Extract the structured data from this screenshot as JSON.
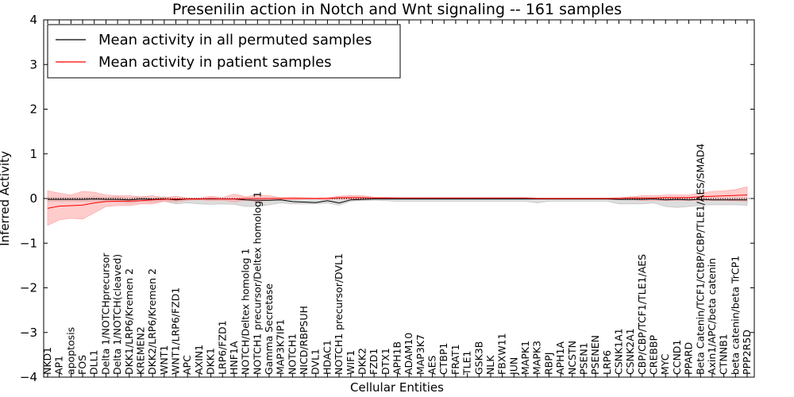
{
  "chart_data": {
    "type": "line",
    "title": "Presenilin action in Notch and Wnt signaling -- 161 samples",
    "xlabel": "Cellular Entities",
    "ylabel": "Inferred Activity",
    "ylim": [
      -4,
      4
    ],
    "yticks": [
      -4,
      -3,
      -2,
      -1,
      0,
      1,
      2,
      3,
      4
    ],
    "ytick_labels": [
      "−4",
      "−3",
      "−2",
      "−1",
      "0",
      "1",
      "2",
      "3",
      "4"
    ],
    "grid": false,
    "legend_position": "top-left",
    "categories": [
      "NKD1",
      "AP1",
      "apoptosis",
      "FOS",
      "DLL1",
      "Delta 1/NOTCHprecursor",
      "Delta 1/NOTCH(cleaved)",
      "DKK1/LRP6/Kremen 2",
      "KREMEN2",
      "DKK2/LRP6/Kremen 2",
      "WNT1",
      "WNT1/LRP6/FZD1",
      "APC",
      "AXIN1",
      "DKK1",
      "LRP6/FZD1",
      "HNF1A",
      "NOTCH/Deltex homolog 1",
      "NOTCH1 precursor/Deltex homolog 1",
      "Gamma Secretase",
      "MAP3K7IP1",
      "NOTCH1",
      "NICD/RBPSUH",
      "DVL1",
      "HDAC1",
      "NOTCH1 precursor/DVL1",
      "WIF1",
      "DKK2",
      "FZD1",
      "DTX1",
      "APH1B",
      "ADAM10",
      "MAP3K7",
      "AES",
      "CTBP1",
      "FRAT1",
      "TLE1",
      "GSK3B",
      "NLK",
      "FBXW11",
      "JUN",
      "MAPK1",
      "MAPK3",
      "RBPJ",
      "APH1A",
      "NCSTN",
      "PSEN1",
      "PSENEN",
      "LRP6",
      "CSNK1A1",
      "CSNK2A1",
      "CBP/CBP/TCF1/TLE1/AES",
      "CREBBP",
      "MYC",
      "CCND1",
      "PPARD",
      "Beta Catenin/TCF1/CtBP/CBP/TLE1/AES/SMAD4",
      "Axin1/APC/beta catenin",
      "CTNNB1",
      "beta catenin/beta TrCP1",
      "PPP2R5D"
    ],
    "series": [
      {
        "name": "Mean activity in all permuted samples",
        "color": "#000000",
        "values": [
          -0.02,
          -0.02,
          -0.02,
          -0.02,
          -0.01,
          -0.02,
          -0.02,
          -0.03,
          -0.01,
          -0.02,
          -0.01,
          -0.03,
          -0.01,
          -0.01,
          -0.01,
          -0.01,
          -0.01,
          -0.03,
          -0.04,
          -0.04,
          -0.03,
          -0.07,
          -0.08,
          -0.09,
          -0.05,
          -0.1,
          -0.03,
          -0.02,
          -0.01,
          -0.01,
          -0.01,
          -0.01,
          -0.01,
          -0.01,
          -0.01,
          -0.01,
          -0.01,
          -0.01,
          -0.01,
          -0.01,
          -0.01,
          -0.01,
          -0.01,
          -0.01,
          -0.01,
          -0.01,
          -0.01,
          -0.01,
          -0.01,
          -0.02,
          -0.02,
          -0.02,
          -0.01,
          -0.03,
          -0.02,
          -0.03,
          -0.02,
          -0.03,
          -0.03,
          -0.03,
          -0.03
        ],
        "band": {
          "color": "#bbbbbb",
          "upper": [
            0.02,
            0.02,
            0.02,
            0.02,
            0.04,
            0.02,
            0.04,
            0.0,
            0.04,
            0.0,
            0.04,
            -0.01,
            0.0,
            0.0,
            0.0,
            0.0,
            0.0,
            0.0,
            0.0,
            0.0,
            0.0,
            0.0,
            0.0,
            0.0,
            0.0,
            0.0,
            0.0,
            0.0,
            0.0,
            0.0,
            0.0,
            0.0,
            0.0,
            0.0,
            0.0,
            0.0,
            0.0,
            0.0,
            0.0,
            0.0,
            0.0,
            0.0,
            0.0,
            0.0,
            0.0,
            0.0,
            0.0,
            0.0,
            0.0,
            0.0,
            0.0,
            0.0,
            0.0,
            0.0,
            0.0,
            0.0,
            0.0,
            0.0,
            0.0,
            0.0,
            0.0
          ],
          "lower": [
            -0.06,
            -0.06,
            -0.06,
            -0.06,
            -0.06,
            -0.06,
            -0.08,
            -0.1,
            -0.06,
            -0.08,
            -0.06,
            -0.12,
            -0.1,
            -0.12,
            -0.13,
            -0.12,
            -0.13,
            -0.18,
            -0.18,
            -0.14,
            -0.1,
            -0.12,
            -0.12,
            -0.12,
            -0.1,
            -0.15,
            -0.06,
            -0.04,
            -0.04,
            -0.05,
            -0.06,
            -0.06,
            -0.06,
            -0.06,
            -0.06,
            -0.06,
            -0.06,
            -0.06,
            -0.06,
            -0.06,
            -0.06,
            -0.06,
            -0.1,
            -0.06,
            -0.06,
            -0.06,
            -0.06,
            -0.06,
            -0.06,
            -0.12,
            -0.12,
            -0.12,
            -0.1,
            -0.18,
            -0.2,
            -0.18,
            -0.15,
            -0.14,
            -0.14,
            -0.14,
            -0.15
          ]
        }
      },
      {
        "name": "Mean activity in patient samples",
        "color": "#ff0000",
        "values": [
          -0.22,
          -0.17,
          -0.16,
          -0.15,
          -0.1,
          -0.07,
          -0.06,
          -0.06,
          -0.05,
          -0.03,
          -0.02,
          -0.01,
          -0.01,
          -0.01,
          -0.0,
          -0.01,
          -0.01,
          0.0,
          0.0,
          0.0,
          -0.0,
          0.0,
          0.0,
          0.0,
          0.0,
          0.02,
          0.02,
          0.02,
          0.01,
          0.01,
          0.01,
          0.01,
          0.01,
          0.01,
          0.01,
          0.01,
          0.01,
          0.01,
          0.01,
          0.01,
          0.01,
          0.01,
          0.0,
          0.0,
          0.0,
          0.0,
          0.0,
          0.0,
          0.0,
          0.0,
          0.01,
          0.01,
          0.01,
          0.02,
          0.02,
          0.02,
          0.04,
          0.05,
          0.06,
          0.07,
          0.08
        ],
        "band": {
          "color": "#ff9999",
          "upper": [
            0.17,
            0.12,
            0.08,
            0.16,
            0.14,
            0.08,
            0.06,
            0.06,
            0.04,
            0.06,
            0.02,
            0.05,
            0.01,
            0.01,
            0.05,
            0.02,
            0.1,
            0.04,
            0.08,
            0.06,
            0.02,
            0.03,
            0.02,
            0.01,
            0.02,
            0.05,
            0.07,
            0.06,
            0.03,
            0.03,
            0.02,
            0.02,
            0.02,
            0.02,
            0.02,
            0.02,
            0.02,
            0.02,
            0.02,
            0.02,
            0.02,
            0.02,
            0.01,
            0.01,
            0.01,
            0.01,
            0.01,
            0.01,
            0.01,
            0.02,
            0.04,
            0.06,
            0.06,
            0.08,
            0.08,
            0.08,
            0.12,
            0.16,
            0.17,
            0.2,
            0.26
          ],
          "lower": [
            -0.6,
            -0.48,
            -0.44,
            -0.46,
            -0.32,
            -0.18,
            -0.16,
            -0.16,
            -0.12,
            -0.12,
            -0.06,
            -0.08,
            -0.04,
            -0.03,
            -0.05,
            -0.04,
            -0.08,
            -0.04,
            -0.06,
            -0.04,
            -0.02,
            -0.02,
            -0.01,
            -0.01,
            -0.02,
            -0.01,
            -0.02,
            -0.01,
            -0.01,
            -0.01,
            -0.01,
            -0.01,
            -0.01,
            -0.01,
            -0.01,
            -0.01,
            -0.01,
            -0.01,
            -0.01,
            -0.01,
            -0.01,
            -0.01,
            -0.01,
            -0.01,
            -0.01,
            -0.01,
            -0.01,
            -0.01,
            -0.01,
            -0.02,
            -0.02,
            -0.04,
            -0.04,
            -0.04,
            -0.04,
            -0.04,
            -0.04,
            -0.04,
            -0.04,
            -0.05,
            -0.06
          ]
        }
      }
    ],
    "reference_line": {
      "y": 0,
      "style": "dotted"
    }
  }
}
